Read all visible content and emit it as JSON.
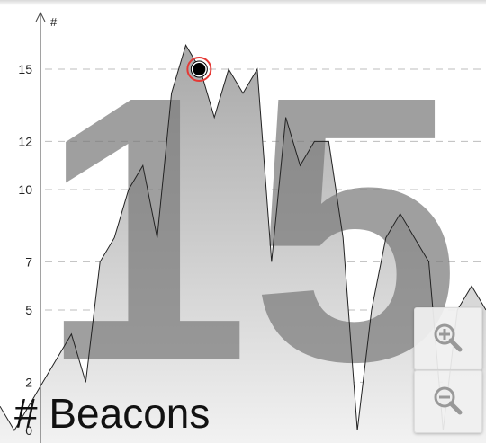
{
  "chart_data": {
    "type": "area",
    "title": "# Beacons",
    "ylabel": "#",
    "xlabel": "",
    "ylim": [
      0,
      16
    ],
    "yticks": [
      0,
      2,
      5,
      7,
      10,
      12,
      15
    ],
    "ytick_labels": [
      "0",
      "2",
      "5",
      "7",
      "10",
      "12",
      "15"
    ],
    "grid": true,
    "grid_style": "dashed-horizontal",
    "current_value": 15,
    "current_value_display": "15",
    "series": [
      {
        "values": [
          1,
          0,
          1,
          2,
          3,
          4,
          2,
          7,
          8,
          10,
          11,
          8,
          14,
          16,
          15,
          13,
          15,
          14,
          15,
          7,
          13,
          11,
          12,
          12,
          8,
          0,
          5,
          8,
          9,
          8,
          7,
          0,
          5,
          6,
          5
        ]
      }
    ],
    "colors": {
      "area_top": "#a8a8a8",
      "area_bottom": "#f2f2f2",
      "line": "#222222",
      "marker_ring": "#e53935",
      "marker_dot": "#000000"
    }
  },
  "controls": {
    "zoom_in_icon": "zoom-in-magnifier-icon",
    "zoom_out_icon": "zoom-out-magnifier-icon"
  }
}
